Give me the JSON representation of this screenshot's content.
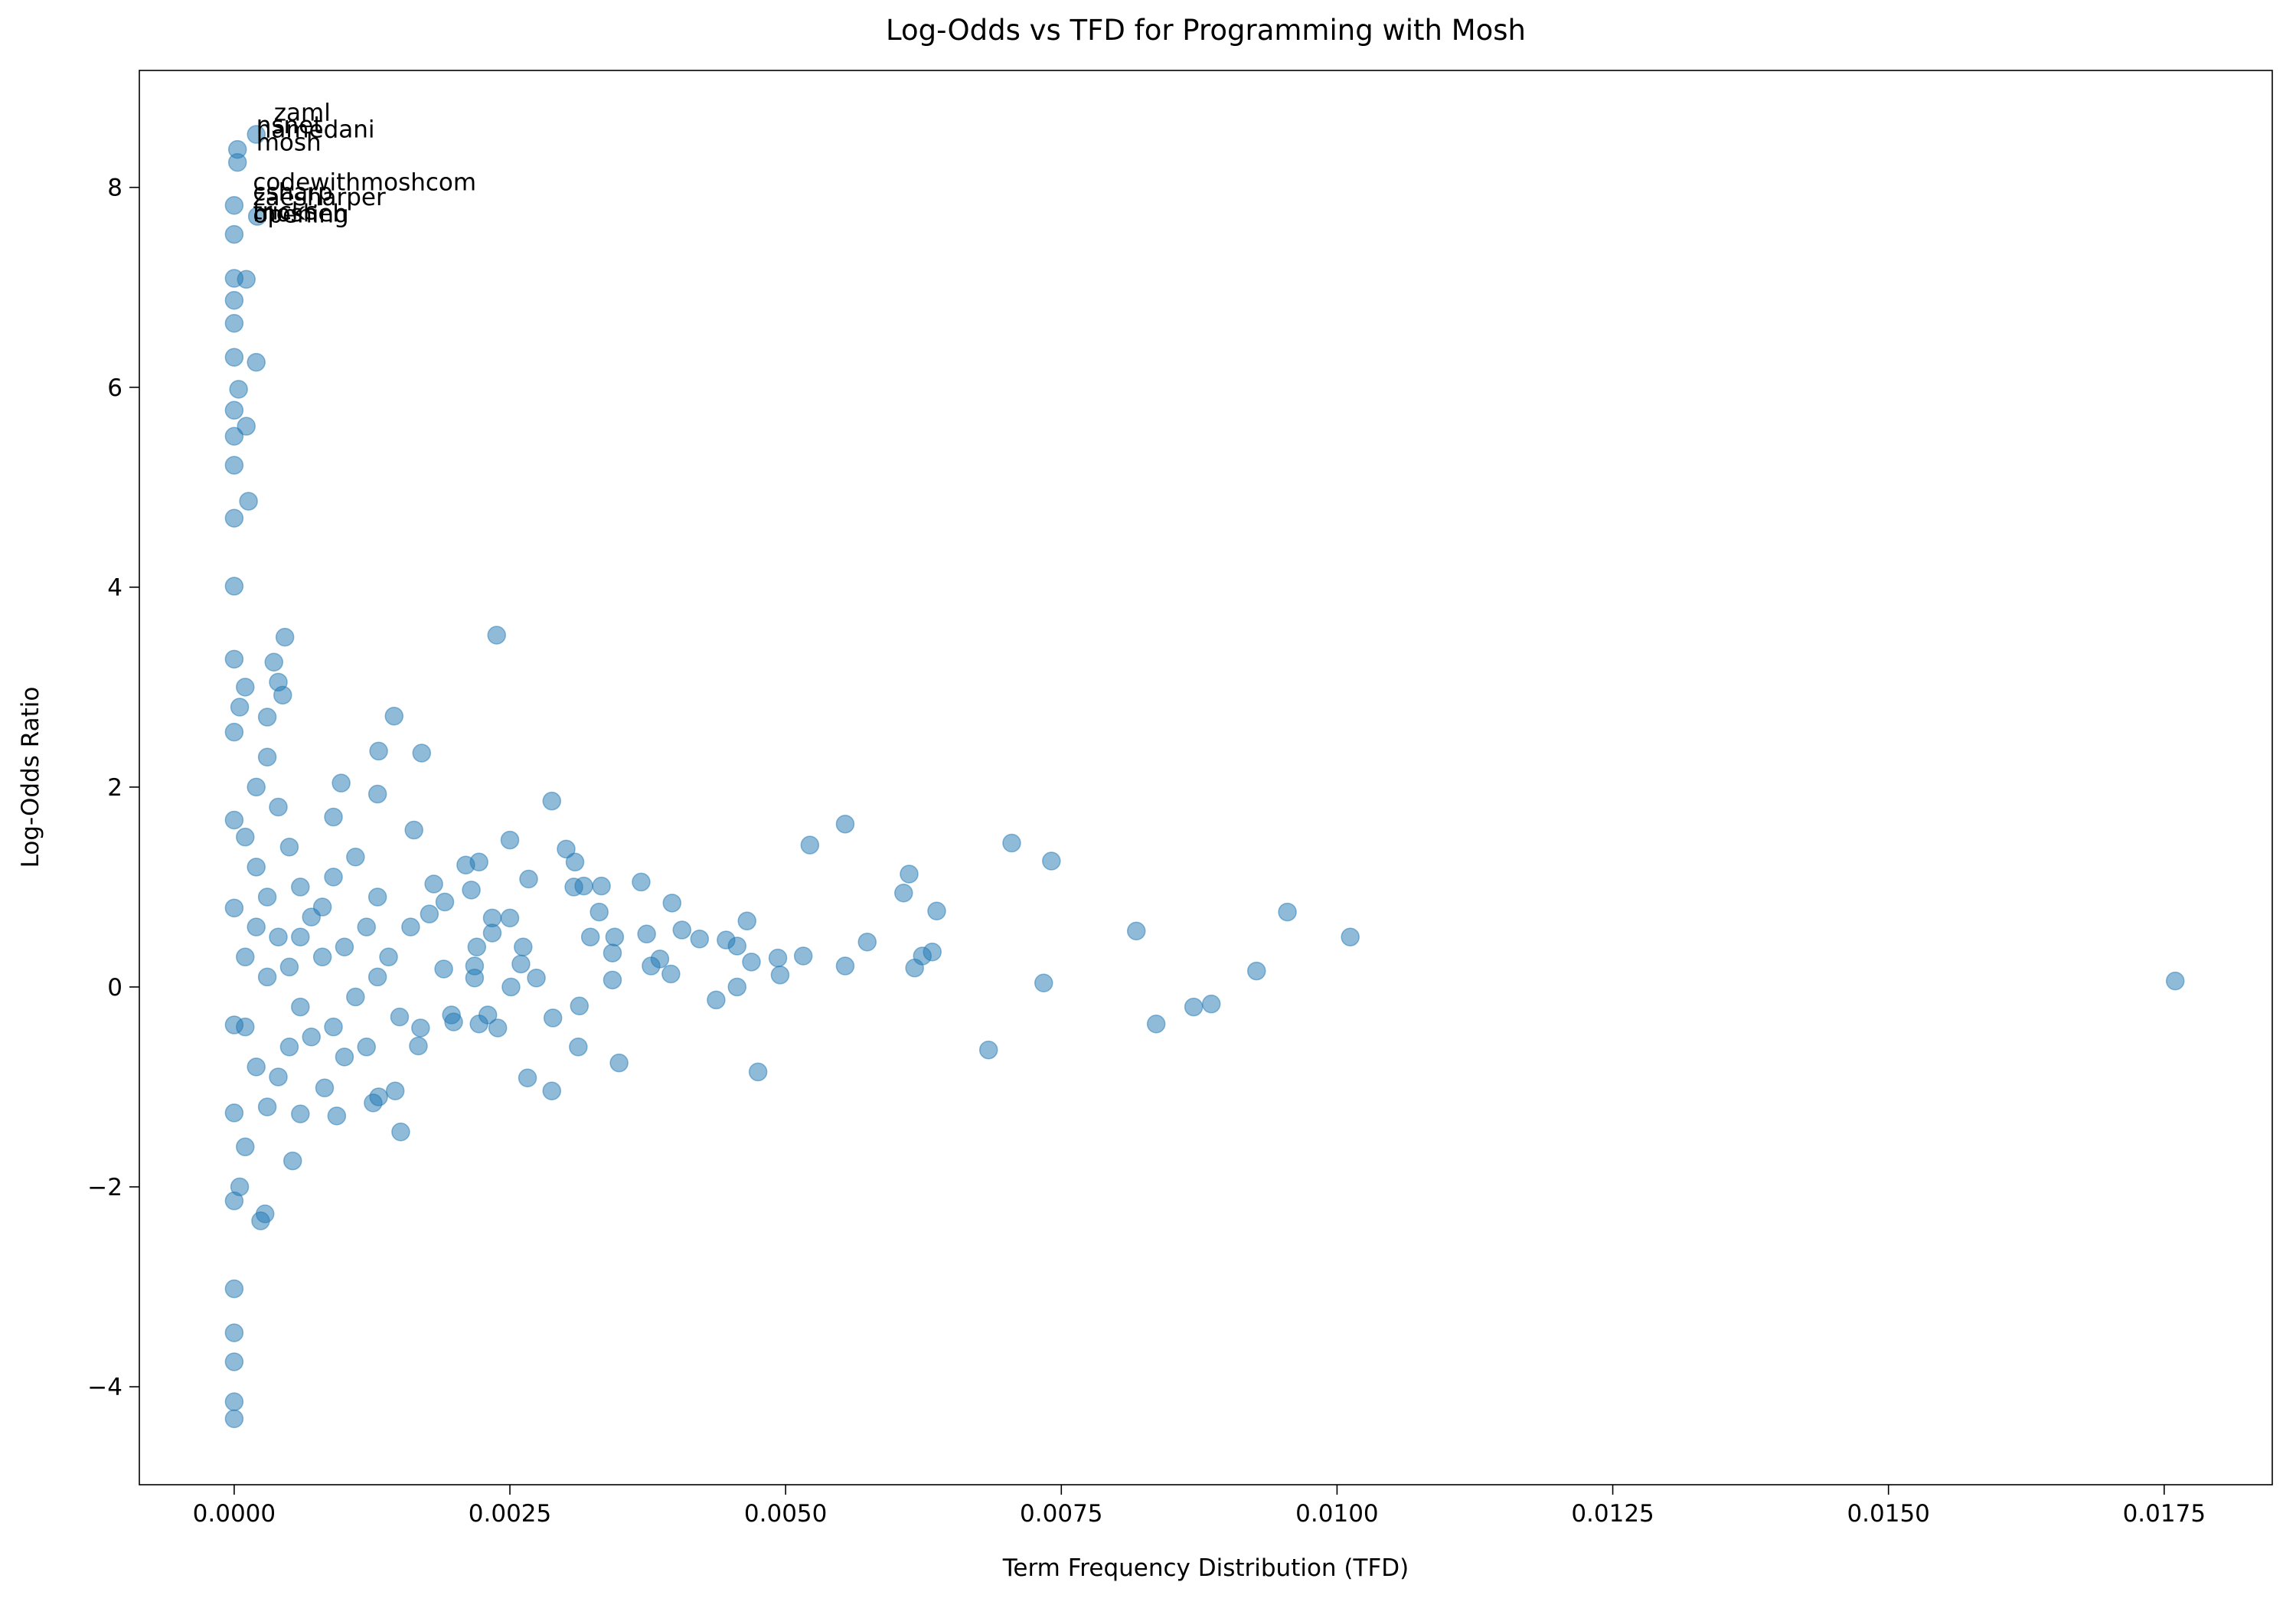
{
  "chart_data": {
    "type": "scatter",
    "title": "Log-Odds vs TFD for Programming with Mosh",
    "x_label": "Term Frequency Distribution (TFD)",
    "y_label": "Log-Odds Ratio",
    "color": "#1f77b4",
    "alpha": 0.5,
    "grid": false,
    "xlim": [
      -0.00086,
      0.01848
    ],
    "ylim": [
      -4.98,
      9.17
    ],
    "xticks": [
      {
        "value": 0,
        "label": "0.0000"
      },
      {
        "value": 0.0025,
        "label": "0.0025"
      },
      {
        "value": 0.005,
        "label": "0.0050"
      },
      {
        "value": 0.0075,
        "label": "0.0075"
      },
      {
        "value": 0.01,
        "label": "0.0100"
      },
      {
        "value": 0.0125,
        "label": "0.0125"
      },
      {
        "value": 0.015,
        "label": "0.0150"
      },
      {
        "value": 0.0175,
        "label": "0.0175"
      }
    ],
    "yticks": [
      {
        "value": -4,
        "label": "−4"
      },
      {
        "value": -2,
        "label": "−2"
      },
      0,
      2,
      4,
      6,
      8
    ],
    "x": [
      0.0176,
      0.01012,
      0.00955,
      0.00927,
      0.00886,
      0.0087,
      0.00836,
      0.00818,
      0.00734,
      0.00741,
      0.00705,
      0.00684,
      0.00637,
      0.00633,
      0.00624,
      0.00617,
      0.00612,
      0.00607,
      0.00574,
      0.00554,
      0.00554,
      0.00522,
      0.00516,
      0.00495,
      0.00493,
      0.00475,
      0.00465,
      0.00456,
      0.00437,
      0.00469,
      0.00456,
      0.00446,
      0.00422,
      0.00406,
      0.00397,
      0.00396,
      0.00386,
      0.00378,
      0.00369,
      0.00374,
      0.00349,
      0.00343,
      0.00345,
      0.00343,
      0.00331,
      0.00323,
      0.00313,
      0.00312,
      0.00333,
      0.00317,
      0.00308,
      0.00309,
      0.00301,
      0.00288,
      0.00289,
      0.00288,
      0.00274,
      0.00266,
      0.00267,
      0.00262,
      0.0026,
      0.0025,
      0.0025,
      0.00251,
      0.00238,
      0.00239,
      0.0023,
      0.00234,
      0.00234,
      0.00222,
      0.00222,
      0.0022,
      0.00218,
      0.00218,
      0.00215,
      0.0021,
      0.00199,
      0.00197,
      0.0019,
      0.00191,
      0.00181,
      0.00177,
      0.0017,
      0.00169,
      0.00167,
      0.00163,
      0.00151,
      0.00145,
      0.00146,
      0.00131,
      0.0013,
      0.00131,
      0.00126,
      0.00097,
      0.00093,
      0.00082,
      0.0006,
      0.00053,
      0.00046,
      0.00044,
      0.0004,
      0.00036,
      0.00028,
      0.00024,
      0.0002,
      0.00011,
      0.00011,
      0.00013,
      4e-05,
      3e-05,
      3e-05,
      0.00021,
      0.0002,
      0,
      0,
      0,
      0,
      0,
      0,
      0,
      0,
      0,
      0,
      0,
      0,
      0,
      0,
      0,
      0,
      0,
      0,
      0,
      0,
      0,
      0,
      0,
      0.0001,
      0.0002,
      0.0003,
      0.0004,
      0.0005,
      0.0006,
      0.0007,
      0.0008,
      0.0009,
      0.001,
      0.0011,
      0.0012,
      0.0013,
      0.0014,
      0.0015,
      0.0002,
      0.0003,
      0.0001,
      0.0002,
      0.0003,
      0.0004,
      0.0005,
      0.0006,
      0.0007,
      0.0008,
      0.0009,
      0.001,
      0.0004,
      0.0005,
      0.0006,
      0.0001,
      0.0002,
      0.0003,
      0.0001,
      5e-05,
      5e-05,
      0.0001,
      0.0003,
      0.0011,
      0.0009,
      0.0013,
      0.0016,
      0.0012
    ],
    "values": [
      0.06,
      0.5,
      0.75,
      0.16,
      -0.17,
      -0.2,
      -0.37,
      0.56,
      0.04,
      1.26,
      1.44,
      -0.63,
      0.76,
      0.35,
      0.31,
      0.19,
      1.13,
      0.94,
      0.45,
      1.63,
      0.21,
      1.42,
      0.31,
      0.12,
      0.29,
      -0.85,
      0.66,
      0,
      -0.13,
      0.25,
      0.41,
      0.47,
      0.48,
      0.57,
      0.84,
      0.13,
      0.28,
      0.21,
      1.05,
      0.53,
      -0.76,
      0.07,
      0.5,
      0.34,
      0.75,
      0.5,
      -0.19,
      -0.6,
      1.01,
      1.01,
      1,
      1.25,
      1.38,
      1.86,
      -0.31,
      -1.04,
      0.09,
      -0.91,
      1.08,
      0.4,
      0.23,
      1.47,
      0.69,
      0,
      3.52,
      -0.41,
      -0.28,
      0.69,
      0.54,
      -0.37,
      1.25,
      0.4,
      0.21,
      0.09,
      0.97,
      1.22,
      -0.35,
      -0.28,
      0.18,
      0.85,
      1.03,
      0.73,
      2.34,
      -0.41,
      -0.59,
      1.57,
      -1.45,
      2.71,
      -1.04,
      2.36,
      1.93,
      -1.1,
      -1.16,
      2.04,
      -1.29,
      -1.01,
      -1.27,
      -1.74,
      3.5,
      2.92,
      3.05,
      3.25,
      -2.27,
      -2.34,
      6.25,
      7.08,
      5.61,
      4.86,
      5.98,
      8.38,
      8.25,
      7.71,
      8.53,
      7.82,
      7.53,
      7.09,
      6.87,
      6.64,
      6.3,
      5.77,
      5.51,
      5.22,
      4.69,
      4.01,
      3.28,
      2.55,
      1.67,
      0.79,
      -0.38,
      -1.26,
      -2.14,
      -3.02,
      -3.46,
      -3.75,
      -4.15,
      -4.32,
      1.5,
      1.2,
      0.9,
      0.5,
      0.2,
      -0.2,
      -0.5,
      0.8,
      1.1,
      0.4,
      -0.1,
      0.6,
      0.9,
      0.3,
      -0.3,
      -0.8,
      -1.2,
      -1.6,
      2,
      2.3,
      1.8,
      1.4,
      1,
      0.7,
      0.3,
      -0.4,
      -0.7,
      -0.9,
      -0.6,
      0.5,
      0.3,
      0.6,
      0.1,
      -0.4,
      2.8,
      -2,
      3,
      2.7,
      1.3,
      1.7,
      0.1,
      0.6,
      -0.6
    ],
    "annotations": [
      {
        "text": "zaml",
        "x": 0.00036,
        "y": 8.67
      },
      {
        "text": "nsnet",
        "x": 0.0002,
        "y": 8.54
      },
      {
        "text": "hamedani",
        "x": 0.0002,
        "y": 8.5
      },
      {
        "text": "mosh",
        "x": 0.0002,
        "y": 8.37
      },
      {
        "text": "codewithmoshcom",
        "x": 0.00017,
        "y": 7.97
      },
      {
        "text": "csharp",
        "x": 0.00017,
        "y": 7.87
      },
      {
        "text": "zaesharper",
        "x": 0.00017,
        "y": 7.82
      },
      {
        "text": "tricks",
        "x": 0.00017,
        "y": 7.68
      },
      {
        "text": "mosheh",
        "x": 0.00017,
        "y": 7.66
      },
      {
        "text": "opening",
        "x": 0.00017,
        "y": 7.65
      }
    ]
  }
}
